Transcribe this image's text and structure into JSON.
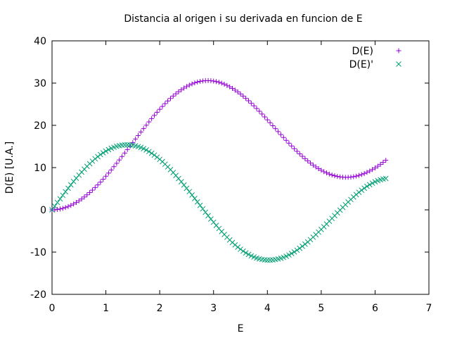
{
  "chart_data": {
    "type": "scatter",
    "title": "Distancia al origen i su derivada en funcion de E",
    "xlabel": "E",
    "ylabel": "D(E) [U.A.]",
    "xlim": [
      0,
      7
    ],
    "ylim": [
      -20,
      40
    ],
    "xticks": [
      "0",
      "1",
      "2",
      "3",
      "4",
      "5",
      "6",
      "7"
    ],
    "yticks": [
      "-20",
      "-10",
      "0",
      "10",
      "20",
      "30",
      "40"
    ],
    "grid": false,
    "legend_position": "top-right",
    "series": [
      {
        "name": "D(E)",
        "marker": "plus",
        "color": "#9400d3",
        "x": [
          0.0,
          0.05,
          0.1,
          0.15,
          0.2,
          0.25,
          0.3,
          0.35,
          0.4,
          0.45,
          0.5,
          0.55,
          0.6,
          0.65,
          0.7,
          0.75,
          0.8,
          0.85,
          0.9,
          0.95,
          1.0,
          1.05,
          1.1,
          1.15,
          1.2,
          1.25,
          1.3,
          1.35,
          1.4,
          1.45,
          1.5,
          1.55,
          1.6,
          1.65,
          1.7,
          1.75,
          1.8,
          1.85,
          1.9,
          1.95,
          2.0,
          2.05,
          2.1,
          2.15,
          2.2,
          2.25,
          2.3,
          2.35,
          2.4,
          2.45,
          2.5,
          2.55,
          2.6,
          2.65,
          2.7,
          2.75,
          2.8,
          2.85,
          2.9,
          2.95,
          3.0,
          3.05,
          3.1,
          3.15,
          3.2,
          3.25,
          3.3,
          3.35,
          3.4,
          3.45,
          3.5,
          3.55,
          3.6,
          3.65,
          3.7,
          3.75,
          3.8,
          3.85,
          3.9,
          3.95,
          4.0,
          4.05,
          4.1,
          4.15,
          4.2,
          4.25,
          4.3,
          4.35,
          4.4,
          4.45,
          4.5,
          4.55,
          4.6,
          4.65,
          4.7,
          4.75,
          4.8,
          4.85,
          4.9,
          4.95,
          5.0,
          5.05,
          5.1,
          5.15,
          5.2,
          5.25,
          5.3,
          5.35,
          5.4,
          5.45,
          5.5,
          5.55,
          5.6,
          5.65,
          5.7,
          5.75,
          5.8,
          5.85,
          5.9,
          5.95,
          6.0,
          6.05,
          6.1,
          6.15,
          6.2
        ],
        "y": [
          0.0,
          0.02,
          0.09,
          0.2,
          0.35,
          0.55,
          0.78,
          1.06,
          1.38,
          1.74,
          2.14,
          2.57,
          3.04,
          3.55,
          4.09,
          4.66,
          5.27,
          5.9,
          6.56,
          7.25,
          7.96,
          8.7,
          9.45,
          10.22,
          11.01,
          11.81,
          12.62,
          13.44,
          14.27,
          15.1,
          15.93,
          16.77,
          17.59,
          18.42,
          19.23,
          20.03,
          20.82,
          21.6,
          22.35,
          23.09,
          23.8,
          24.48,
          25.14,
          25.77,
          26.37,
          26.93,
          27.46,
          27.95,
          28.4,
          28.82,
          29.19,
          29.52,
          29.81,
          30.05,
          30.25,
          30.4,
          30.51,
          30.57,
          30.59,
          30.56,
          30.48,
          30.36,
          30.2,
          29.99,
          29.74,
          29.45,
          29.12,
          28.75,
          28.34,
          27.9,
          27.43,
          26.92,
          26.38,
          25.82,
          25.23,
          24.62,
          23.99,
          23.34,
          22.68,
          22.0,
          21.31,
          20.62,
          19.92,
          19.22,
          18.52,
          17.82,
          17.13,
          16.45,
          15.78,
          15.12,
          14.48,
          13.85,
          13.25,
          12.67,
          12.11,
          11.58,
          11.07,
          10.6,
          10.16,
          9.75,
          9.38,
          9.04,
          8.74,
          8.47,
          8.25,
          8.06,
          7.91,
          7.8,
          7.73,
          7.7,
          7.71,
          7.76,
          7.85,
          7.98,
          8.15,
          8.36,
          8.6,
          8.88,
          9.19,
          9.54,
          9.92,
          10.33,
          10.77,
          11.24,
          11.73
        ]
      },
      {
        "name": "D(E)'",
        "marker": "cross",
        "color": "#009e73",
        "x": [
          0.0,
          0.05,
          0.1,
          0.15,
          0.2,
          0.25,
          0.3,
          0.35,
          0.4,
          0.45,
          0.5,
          0.55,
          0.6,
          0.65,
          0.7,
          0.75,
          0.8,
          0.85,
          0.9,
          0.95,
          1.0,
          1.05,
          1.1,
          1.15,
          1.2,
          1.25,
          1.3,
          1.35,
          1.4,
          1.45,
          1.5,
          1.55,
          1.6,
          1.65,
          1.7,
          1.75,
          1.8,
          1.85,
          1.9,
          1.95,
          2.0,
          2.05,
          2.1,
          2.15,
          2.2,
          2.25,
          2.3,
          2.35,
          2.4,
          2.45,
          2.5,
          2.55,
          2.6,
          2.65,
          2.7,
          2.75,
          2.8,
          2.85,
          2.9,
          2.95,
          3.0,
          3.05,
          3.1,
          3.15,
          3.2,
          3.25,
          3.3,
          3.35,
          3.4,
          3.45,
          3.5,
          3.55,
          3.6,
          3.65,
          3.7,
          3.75,
          3.8,
          3.85,
          3.9,
          3.95,
          4.0,
          4.05,
          4.1,
          4.15,
          4.2,
          4.25,
          4.3,
          4.35,
          4.4,
          4.45,
          4.5,
          4.55,
          4.6,
          4.65,
          4.7,
          4.75,
          4.8,
          4.85,
          4.9,
          4.95,
          5.0,
          5.05,
          5.1,
          5.15,
          5.2,
          5.25,
          5.3,
          5.35,
          5.4,
          5.45,
          5.5,
          5.55,
          5.6,
          5.65,
          5.7,
          5.75,
          5.8,
          5.85,
          5.9,
          5.95,
          6.0,
          6.05,
          6.1,
          6.15,
          6.2
        ],
        "y": [
          0.0,
          0.87,
          1.74,
          2.6,
          3.45,
          4.29,
          5.11,
          5.92,
          6.71,
          7.48,
          8.22,
          8.94,
          9.63,
          10.29,
          10.92,
          11.51,
          12.07,
          12.59,
          13.07,
          13.5,
          13.9,
          14.25,
          14.56,
          14.82,
          15.03,
          15.19,
          15.31,
          15.37,
          15.39,
          15.36,
          15.28,
          15.15,
          14.97,
          14.75,
          14.48,
          14.16,
          13.8,
          13.4,
          12.95,
          12.47,
          11.95,
          11.39,
          10.8,
          10.17,
          9.52,
          8.84,
          8.13,
          7.4,
          6.65,
          5.88,
          5.1,
          4.3,
          3.5,
          2.69,
          1.87,
          1.06,
          0.24,
          -0.57,
          -1.37,
          -2.16,
          -2.93,
          -3.69,
          -4.43,
          -5.14,
          -5.83,
          -6.49,
          -7.13,
          -7.73,
          -8.29,
          -8.83,
          -9.32,
          -9.78,
          -10.19,
          -10.56,
          -10.89,
          -11.17,
          -11.41,
          -11.6,
          -11.74,
          -11.84,
          -11.89,
          -11.89,
          -11.85,
          -11.76,
          -11.63,
          -11.46,
          -11.24,
          -10.98,
          -10.68,
          -10.34,
          -9.96,
          -9.55,
          -9.11,
          -8.63,
          -8.13,
          -7.6,
          -7.05,
          -6.47,
          -5.88,
          -5.26,
          -4.64,
          -4.0,
          -3.35,
          -2.69,
          -2.03,
          -1.37,
          -0.71,
          -0.06,
          0.59,
          1.22,
          1.85,
          2.45,
          3.04,
          3.6,
          4.14,
          4.64,
          5.12,
          5.56,
          5.96,
          6.32,
          6.64,
          6.91,
          7.13,
          7.3,
          7.42
        ]
      }
    ]
  }
}
